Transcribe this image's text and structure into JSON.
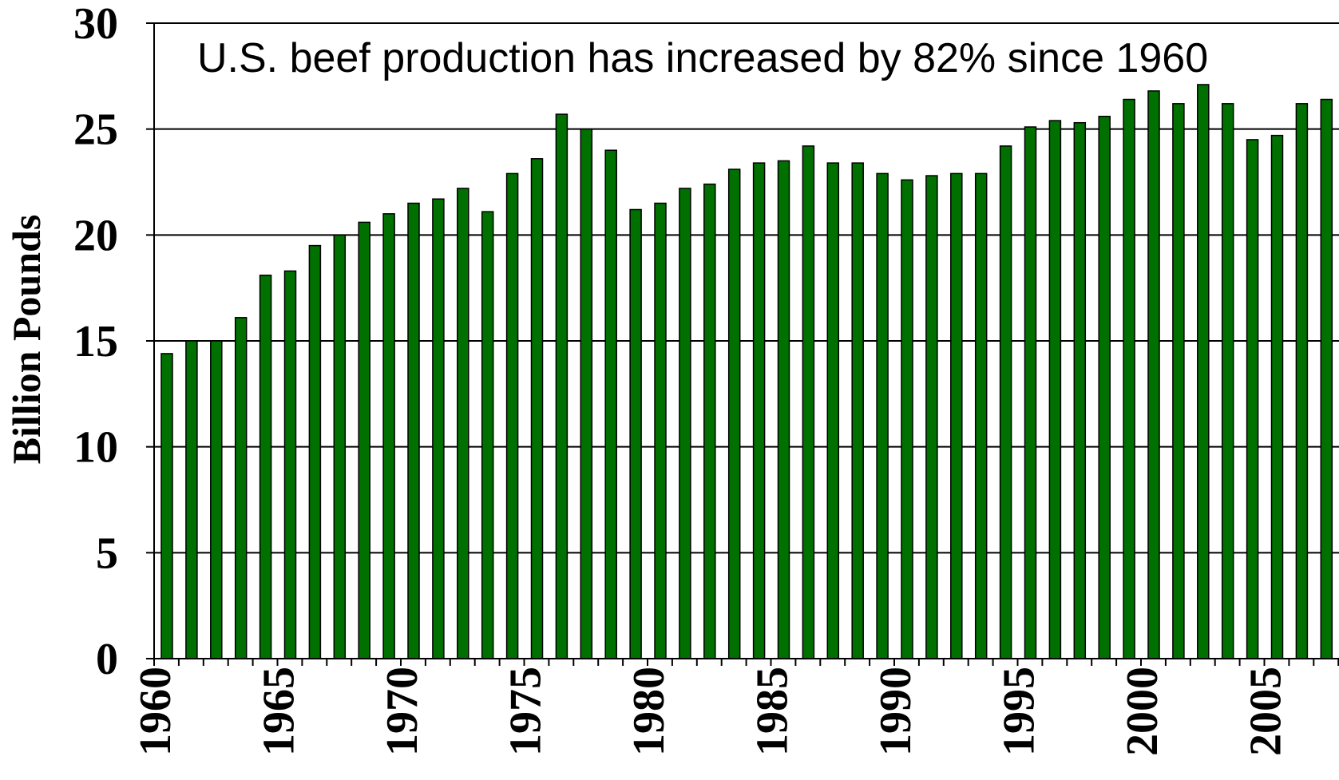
{
  "chart_data": {
    "type": "bar",
    "title": "U.S. beef production has increased by 82% since 1960",
    "xlabel": "",
    "ylabel": "Billion Pounds",
    "ylim": [
      0,
      30
    ],
    "yticks": [
      0,
      5,
      10,
      15,
      20,
      25,
      30
    ],
    "xtick_labels": [
      "1960",
      "1965",
      "1970",
      "1975",
      "1980",
      "1985",
      "1990",
      "1995",
      "2000",
      "2005"
    ],
    "grid": true,
    "bar_color": "#007000",
    "categories": [
      1960,
      1961,
      1962,
      1963,
      1964,
      1965,
      1966,
      1967,
      1968,
      1969,
      1970,
      1971,
      1972,
      1973,
      1974,
      1975,
      1976,
      1977,
      1978,
      1979,
      1980,
      1981,
      1982,
      1983,
      1984,
      1985,
      1986,
      1987,
      1988,
      1989,
      1990,
      1991,
      1992,
      1993,
      1994,
      1995,
      1996,
      1997,
      1998,
      1999,
      2000,
      2001,
      2002,
      2003,
      2004,
      2005,
      2006,
      2007
    ],
    "values": [
      14.4,
      15.0,
      15.0,
      16.1,
      18.1,
      18.3,
      19.5,
      20.0,
      20.6,
      21.0,
      21.5,
      21.7,
      22.2,
      21.1,
      22.9,
      23.6,
      25.7,
      25.0,
      24.0,
      21.2,
      21.5,
      22.2,
      22.4,
      23.1,
      23.4,
      23.5,
      24.2,
      23.4,
      23.4,
      22.9,
      22.6,
      22.8,
      22.9,
      22.9,
      24.2,
      25.1,
      25.4,
      25.3,
      25.6,
      26.4,
      26.8,
      26.2,
      27.1,
      26.2,
      24.5,
      24.7,
      26.2,
      26.4
    ]
  }
}
